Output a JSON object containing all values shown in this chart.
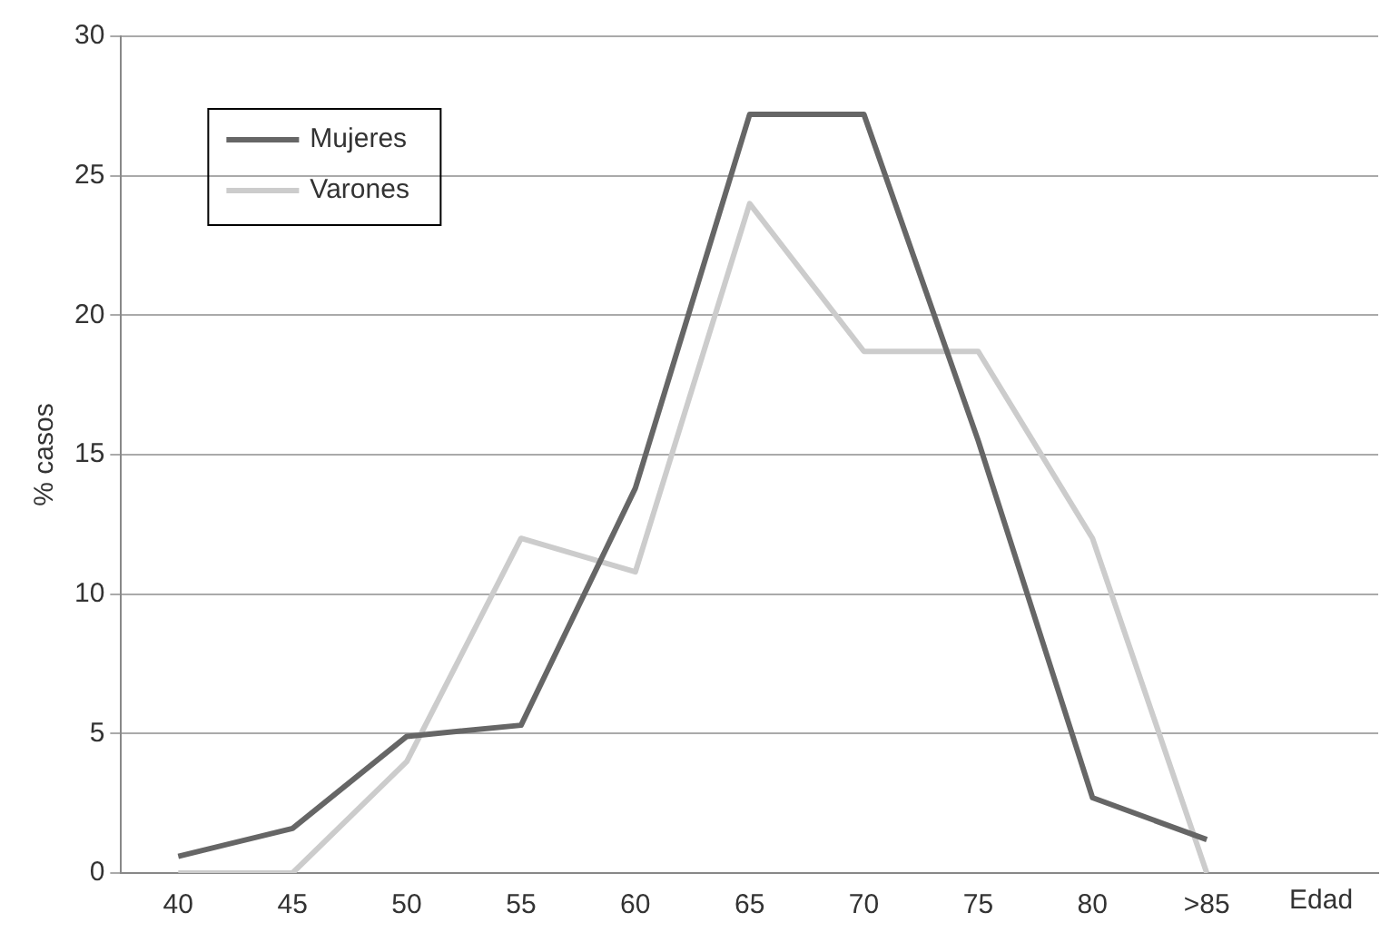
{
  "chart_data": {
    "type": "line",
    "xlabel": "Edad",
    "ylabel": "% casos",
    "categories": [
      "40",
      "45",
      "50",
      "55",
      "60",
      "65",
      "70",
      "75",
      "80",
      ">85"
    ],
    "series": [
      {
        "name": "Mujeres",
        "color": "#666666",
        "values": [
          0.6,
          1.6,
          4.9,
          5.3,
          13.8,
          27.2,
          27.2,
          15.5,
          2.7,
          1.2
        ]
      },
      {
        "name": "Varones",
        "color": "#cccccc",
        "values": [
          0,
          0,
          4.0,
          12.0,
          10.8,
          24.0,
          18.7,
          18.7,
          12.0,
          0
        ]
      }
    ],
    "ylim": [
      0,
      30
    ],
    "yticks": [
      0,
      5,
      10,
      15,
      20,
      25,
      30
    ],
    "grid": "y",
    "legend": "top left",
    "marker": "none",
    "line_style": "solid"
  }
}
